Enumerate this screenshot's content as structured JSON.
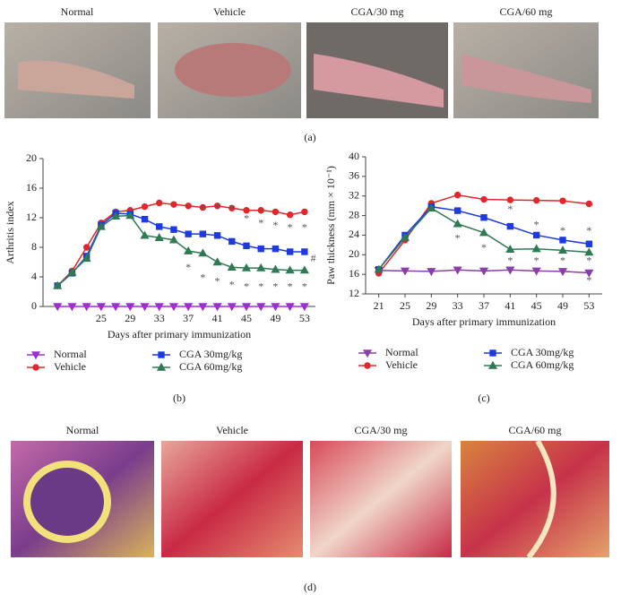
{
  "panel_a": {
    "labels": [
      "Normal",
      "Vehicle",
      "CGA/30 mg",
      "CGA/60 mg"
    ],
    "caption": "(a)"
  },
  "chart_data": [
    {
      "type": "line",
      "caption": "(b)",
      "x_label": "Days after primary immunization",
      "y_label": "Arthritis index",
      "xlim": [
        17,
        54.5
      ],
      "ylim": [
        0,
        20
      ],
      "xticks": [
        25,
        29,
        33,
        37,
        41,
        45,
        49,
        53
      ],
      "yticks": [
        0,
        4,
        8,
        12,
        16,
        20
      ],
      "grid": false,
      "x": [
        19,
        21,
        23,
        25,
        27,
        29,
        31,
        33,
        35,
        37,
        39,
        41,
        43,
        45,
        47,
        49,
        51,
        53
      ],
      "series": [
        {
          "name": "Normal",
          "color": "#9b30d0",
          "marker": "triangle-down",
          "values": [
            0,
            0,
            0,
            0,
            0,
            0,
            0,
            0,
            0,
            0,
            0,
            0,
            0,
            0,
            0,
            0,
            0,
            0
          ]
        },
        {
          "name": "Vehicle",
          "color": "#e3262b",
          "marker": "circle",
          "values": [
            2.8,
            4.8,
            8,
            11.3,
            12.8,
            13,
            13.5,
            14,
            13.8,
            13.6,
            13.4,
            13.6,
            13.3,
            13,
            13,
            12.8,
            12.4,
            12.8
          ]
        },
        {
          "name": "CGA 30mg/kg",
          "color": "#1c3ae0",
          "marker": "square",
          "values": [
            2.8,
            4.5,
            6.8,
            11,
            12.6,
            12.5,
            11.8,
            10.8,
            10.4,
            9.8,
            9.8,
            9.6,
            8.8,
            8.2,
            7.8,
            7.8,
            7.4,
            7.4
          ]
        },
        {
          "name": "CGA 60mg/kg",
          "color": "#2f7a52",
          "marker": "triangle",
          "values": [
            2.8,
            4.6,
            6.5,
            10.8,
            12.2,
            12.3,
            9.6,
            9.3,
            9,
            7.5,
            7.2,
            6,
            5.3,
            5.2,
            5.2,
            5,
            4.9,
            4.9
          ]
        }
      ],
      "annotations": [
        {
          "text": "*",
          "x": 39,
          "y": 13.2
        },
        {
          "text": "*",
          "x": 41,
          "y": 13.2
        },
        {
          "text": "*",
          "x": 43,
          "y": 13.2
        },
        {
          "text": "*",
          "x": 45,
          "y": 11.8
        },
        {
          "text": "*",
          "x": 47,
          "y": 11.2
        },
        {
          "text": "*",
          "x": 49,
          "y": 10.9
        },
        {
          "text": "*",
          "x": 51,
          "y": 10.6
        },
        {
          "text": "*",
          "x": 53,
          "y": 10.6
        },
        {
          "text": "*",
          "x": 37,
          "y": 5.2
        },
        {
          "text": "*",
          "x": 39,
          "y": 3.8
        },
        {
          "text": "*",
          "x": 41,
          "y": 3.3
        },
        {
          "text": "*",
          "x": 43,
          "y": 2.8
        },
        {
          "text": "*",
          "x": 45,
          "y": 2.6
        },
        {
          "text": "*",
          "x": 47,
          "y": 2.6
        },
        {
          "text": "*",
          "x": 49,
          "y": 2.6
        },
        {
          "text": "*",
          "x": 51,
          "y": 2.6
        },
        {
          "text": "*",
          "x": 53,
          "y": 2.6
        },
        {
          "text": "#",
          "x": 54.2,
          "y": 6.4
        }
      ]
    },
    {
      "type": "line",
      "caption": "(c)",
      "x_label": "Days after primary immunization",
      "y_label": "Paw thickness (mm × 10⁻¹)",
      "xlim": [
        19,
        55
      ],
      "ylim": [
        12,
        40
      ],
      "xticks": [
        21,
        25,
        29,
        33,
        37,
        41,
        45,
        49,
        53
      ],
      "yticks": [
        12,
        16,
        20,
        24,
        28,
        32,
        36,
        40
      ],
      "grid": false,
      "x": [
        21,
        25,
        29,
        33,
        37,
        41,
        45,
        49,
        53
      ],
      "series": [
        {
          "name": "Normal",
          "color": "#8a3fa8",
          "marker": "triangle-down",
          "values": [
            16.8,
            16.7,
            16.6,
            16.9,
            16.7,
            16.9,
            16.7,
            16.6,
            16.3
          ]
        },
        {
          "name": "Vehicle",
          "color": "#e3262b",
          "marker": "circle",
          "values": [
            16.2,
            23,
            30.5,
            32.2,
            31.3,
            31.2,
            31.1,
            31,
            30.4
          ]
        },
        {
          "name": "CGA 30mg/kg",
          "color": "#1c3ae0",
          "marker": "square",
          "values": [
            17,
            24,
            29.8,
            29,
            27.6,
            25.8,
            24,
            23,
            22.2
          ]
        },
        {
          "name": "CGA 60mg/kg",
          "color": "#2f7a52",
          "marker": "triangle",
          "values": [
            17,
            23.5,
            29.5,
            26.3,
            24.5,
            21.1,
            21.2,
            20.9,
            20.5
          ]
        }
      ],
      "annotations": [
        {
          "text": "*",
          "x": 41,
          "y": 29.2
        },
        {
          "text": "*",
          "x": 45,
          "y": 26
        },
        {
          "text": "*",
          "x": 49,
          "y": 24.8
        },
        {
          "text": "*",
          "x": 53,
          "y": 24.8
        },
        {
          "text": "*",
          "x": 33,
          "y": 23.2
        },
        {
          "text": "*",
          "x": 37,
          "y": 21.3
        },
        {
          "text": "*",
          "x": 41,
          "y": 18.6
        },
        {
          "text": "*",
          "x": 45,
          "y": 18.6
        },
        {
          "text": "*",
          "x": 49,
          "y": 18.6
        },
        {
          "text": "*",
          "x": 53,
          "y": 18.6
        },
        {
          "text": "*",
          "x": 53,
          "y": 14.6
        }
      ]
    }
  ],
  "panel_d": {
    "labels": [
      "Normal",
      "Vehicle",
      "CGA/30 mg",
      "CGA/60 mg"
    ],
    "caption": "(d)"
  }
}
